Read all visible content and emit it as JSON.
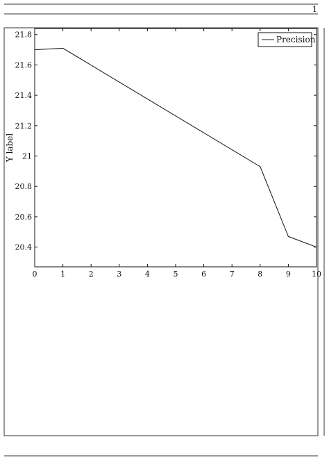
{
  "page": {
    "number": "1"
  },
  "chart_data": {
    "type": "line",
    "title": "",
    "xlabel": "",
    "ylabel": "Y label",
    "xlim": [
      0,
      10
    ],
    "ylim": [
      20.27,
      21.84
    ],
    "x_ticks": [
      0,
      1,
      2,
      3,
      4,
      5,
      6,
      7,
      8,
      9,
      10
    ],
    "x_tick_labels": [
      "0",
      "1",
      "2",
      "3",
      "4",
      "5",
      "6",
      "7",
      "8",
      "9",
      "10"
    ],
    "y_ticks": [
      20.4,
      20.6,
      20.8,
      21.0,
      21.2,
      21.4,
      21.6,
      21.8
    ],
    "y_tick_labels": [
      "20.4",
      "20.6",
      "20.8",
      "21",
      "21.2",
      "21.4",
      "21.6",
      "21.8"
    ],
    "grid": false,
    "legend_position": "top-right",
    "series": [
      {
        "name": "Precision",
        "color": "#222222",
        "x": [
          0,
          1,
          8,
          9,
          10
        ],
        "y": [
          21.7,
          21.71,
          20.93,
          20.47,
          20.4
        ]
      }
    ]
  }
}
